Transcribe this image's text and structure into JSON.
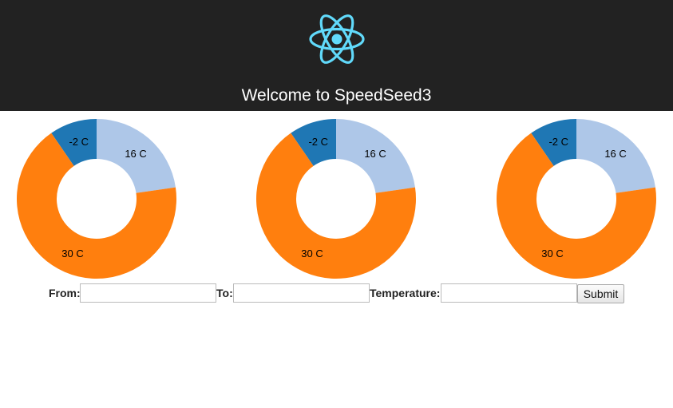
{
  "header": {
    "logo_icon": "react-atom-icon",
    "logo_color": "#61dafb",
    "background": "#222222",
    "title": "Welcome to SpeedSeed3"
  },
  "chart_data": [
    {
      "type": "pie",
      "labels": [
        "-2 C",
        "16 C",
        "30 C"
      ],
      "values": [
        -2,
        16,
        30
      ],
      "shares": [
        0.096,
        0.227,
        0.677
      ],
      "colors": [
        "#1f77b4",
        "#aec7e8",
        "#ff7f0e"
      ]
    },
    {
      "type": "pie",
      "labels": [
        "-2 C",
        "16 C",
        "30 C"
      ],
      "values": [
        -2,
        16,
        30
      ],
      "shares": [
        0.096,
        0.227,
        0.677
      ],
      "colors": [
        "#1f77b4",
        "#aec7e8",
        "#ff7f0e"
      ]
    },
    {
      "type": "pie",
      "labels": [
        "-2 C",
        "16 C",
        "30 C"
      ],
      "values": [
        -2,
        16,
        30
      ],
      "shares": [
        0.096,
        0.227,
        0.677
      ],
      "colors": [
        "#1f77b4",
        "#aec7e8",
        "#ff7f0e"
      ]
    }
  ],
  "form": {
    "from_label": "From:",
    "from_value": "",
    "to_label": "To:",
    "to_value": "",
    "temperature_label": "Temperature:",
    "temperature_value": "",
    "submit_label": "Submit"
  }
}
